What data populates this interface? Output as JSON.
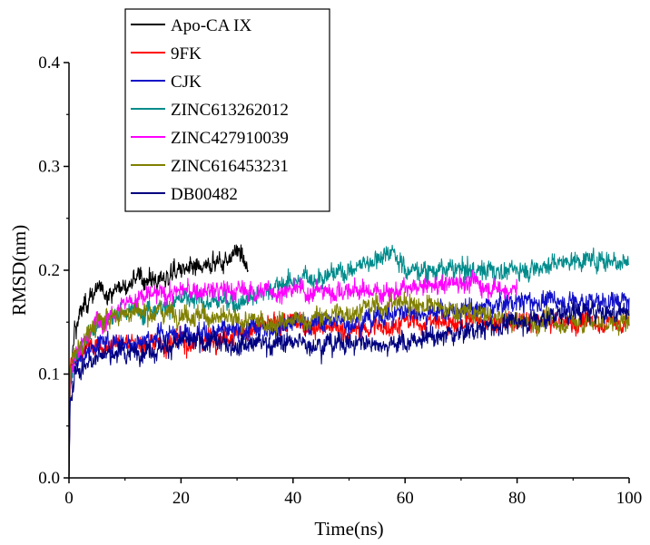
{
  "chart_data": {
    "type": "line",
    "title": "",
    "xlabel": "Time(ns)",
    "ylabel": "RMSD(nm)",
    "xlim": [
      0,
      100
    ],
    "ylim": [
      0.0,
      0.4
    ],
    "xticks": [
      0,
      20,
      40,
      60,
      80,
      100
    ],
    "xtick_labels": [
      "0",
      "20",
      "40",
      "60",
      "80",
      "100"
    ],
    "yticks": [
      0.0,
      0.1,
      0.2,
      0.3,
      0.4
    ],
    "ytick_labels": [
      "0.0",
      "0.1",
      "0.2",
      "0.3",
      "0.4"
    ],
    "legend_position": "top-left",
    "series": [
      {
        "name": "Apo-CA IX",
        "color": "#000000",
        "x": [
          0,
          1,
          3,
          5,
          8,
          12,
          16,
          20,
          24,
          28,
          30,
          32
        ],
        "y": [
          0.08,
          0.14,
          0.17,
          0.18,
          0.18,
          0.19,
          0.19,
          0.2,
          0.2,
          0.21,
          0.22,
          0.2
        ]
      },
      {
        "name": "9FK",
        "color": "#ff0000",
        "x": [
          0,
          1,
          5,
          10,
          20,
          30,
          40,
          50,
          60,
          70,
          80,
          90,
          100
        ],
        "y": [
          0.1,
          0.12,
          0.13,
          0.13,
          0.13,
          0.14,
          0.15,
          0.14,
          0.15,
          0.15,
          0.15,
          0.15,
          0.15
        ]
      },
      {
        "name": "CJK",
        "color": "#1010c8",
        "x": [
          0,
          1,
          5,
          10,
          20,
          30,
          40,
          50,
          60,
          70,
          80,
          90,
          100
        ],
        "y": [
          0.09,
          0.11,
          0.13,
          0.13,
          0.14,
          0.14,
          0.15,
          0.15,
          0.16,
          0.16,
          0.17,
          0.17,
          0.17
        ]
      },
      {
        "name": "ZINC613262012",
        "color": "#008b8b",
        "x": [
          0,
          1,
          5,
          10,
          20,
          30,
          40,
          50,
          58,
          60,
          70,
          80,
          90,
          100
        ],
        "y": [
          0.09,
          0.12,
          0.15,
          0.16,
          0.17,
          0.17,
          0.19,
          0.2,
          0.22,
          0.2,
          0.2,
          0.2,
          0.21,
          0.21
        ]
      },
      {
        "name": "ZINC427910039",
        "color": "#ff00ff",
        "x": [
          0,
          1,
          5,
          10,
          20,
          30,
          40,
          50,
          60,
          70,
          80
        ],
        "y": [
          0.08,
          0.12,
          0.15,
          0.17,
          0.18,
          0.18,
          0.18,
          0.18,
          0.18,
          0.19,
          0.18
        ]
      },
      {
        "name": "ZINC616453231",
        "color": "#808000",
        "x": [
          0,
          1,
          5,
          10,
          20,
          30,
          40,
          50,
          60,
          70,
          80,
          90,
          100
        ],
        "y": [
          0.1,
          0.12,
          0.15,
          0.16,
          0.16,
          0.15,
          0.15,
          0.16,
          0.17,
          0.16,
          0.15,
          0.15,
          0.15
        ]
      },
      {
        "name": "DB00482",
        "color": "#000080",
        "x": [
          0,
          1,
          5,
          10,
          20,
          30,
          40,
          50,
          60,
          70,
          80,
          90,
          100
        ],
        "y": [
          0.07,
          0.1,
          0.12,
          0.12,
          0.13,
          0.13,
          0.13,
          0.13,
          0.13,
          0.14,
          0.15,
          0.16,
          0.16
        ]
      }
    ]
  }
}
